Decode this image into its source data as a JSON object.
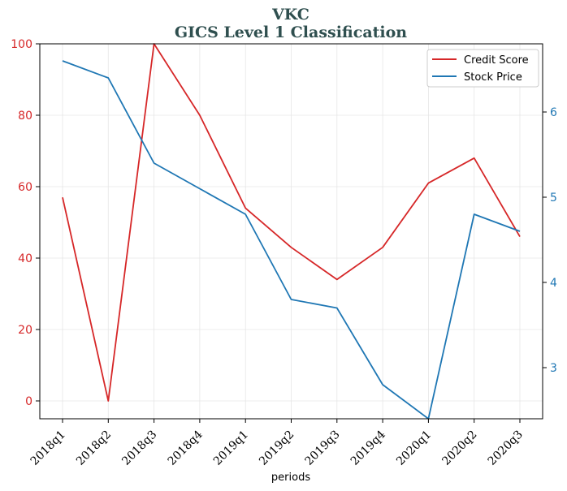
{
  "chart_data": {
    "type": "line",
    "title": "VKC",
    "subtitle": "GICS Level 1 Classification",
    "xlabel": "periods",
    "categories": [
      "2018q1",
      "2018q2",
      "2018q3",
      "2018q4",
      "2019q1",
      "2019q2",
      "2019q3",
      "2019q4",
      "2020q1",
      "2020q2",
      "2020q3"
    ],
    "left_axis": {
      "ylim": [
        0,
        100
      ],
      "ticks": [
        0,
        20,
        40,
        60,
        80,
        100
      ],
      "color": "#d62728"
    },
    "right_axis": {
      "ylim": [
        2.4,
        6.8
      ],
      "ticks": [
        3,
        4,
        5,
        6
      ],
      "color": "#1f77b4"
    },
    "series": [
      {
        "name": "Credit Score",
        "axis": "left",
        "color": "#d62728",
        "values": [
          57,
          0,
          100,
          80,
          54,
          43,
          34,
          43,
          61,
          68,
          46
        ]
      },
      {
        "name": "Stock Price",
        "axis": "right",
        "color": "#1f77b4",
        "values": [
          6.6,
          6.4,
          5.4,
          5.1,
          4.8,
          3.8,
          3.7,
          2.8,
          2.4,
          4.8,
          4.6
        ]
      }
    ],
    "grid": true,
    "legend_position": "top-right"
  }
}
